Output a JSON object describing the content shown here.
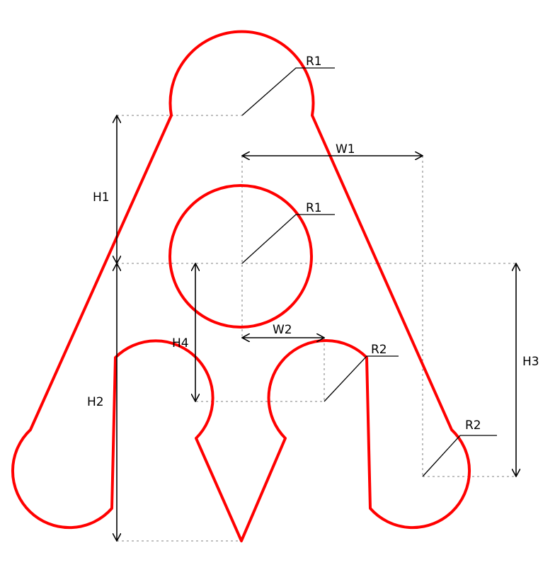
{
  "diagram": {
    "shape_color": "#ff0000",
    "line_color": "#000000",
    "guide_color": "#9a9a9a",
    "labels": {
      "r1_top": "R1",
      "r1_center": "R1",
      "r2_inner": "R2",
      "r2_outer": "R2",
      "w1": "W1",
      "w2": "W2",
      "h1": "H1",
      "h2": "H2",
      "h3": "H3",
      "h4": "H4"
    }
  }
}
